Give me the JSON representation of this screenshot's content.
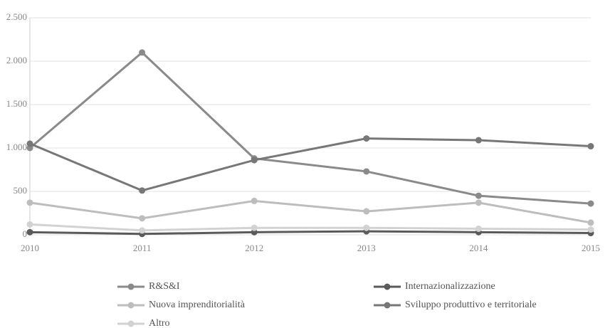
{
  "chart_data": {
    "type": "line",
    "categories": [
      "2010",
      "2011",
      "2012",
      "2013",
      "2014",
      "2015"
    ],
    "series": [
      {
        "name": "R&S&I",
        "color": "#8a8a8a",
        "values": [
          1000,
          2100,
          880,
          730,
          450,
          360
        ]
      },
      {
        "name": "Internazionalizzazione",
        "color": "#5a5a5a",
        "values": [
          30,
          10,
          30,
          40,
          30,
          20
        ]
      },
      {
        "name": "Nuova imprenditorialità",
        "color": "#bdbdbd",
        "values": [
          370,
          190,
          390,
          270,
          370,
          140
        ]
      },
      {
        "name": "Sviluppo produttivo e territoriale",
        "color": "#777777",
        "values": [
          1050,
          510,
          860,
          1110,
          1090,
          1020
        ]
      },
      {
        "name": "Altro",
        "color": "#d2d2d2",
        "values": [
          120,
          50,
          80,
          80,
          70,
          60
        ]
      }
    ],
    "ylim": [
      0,
      2500
    ],
    "yticks": [
      0,
      500,
      {
        "value": 1000,
        "label": "1.000"
      },
      {
        "value": 1500,
        "label": "1.500"
      },
      {
        "value": 2000,
        "label": "2.000"
      },
      {
        "value": 2500,
        "label": "2.500"
      }
    ],
    "grid": true
  }
}
